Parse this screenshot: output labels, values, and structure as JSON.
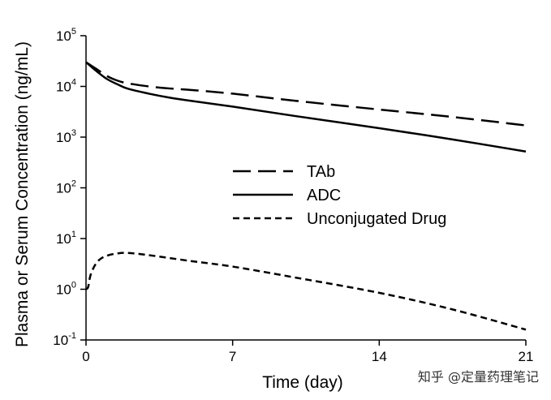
{
  "chart_data": {
    "type": "line",
    "title": "",
    "xlabel": "Time (day)",
    "ylabel": "Plasma or Serum Concentration (ng/mL)",
    "xlim": [
      0,
      21
    ],
    "ylim": [
      0.1,
      100000
    ],
    "yscale": "log",
    "grid": false,
    "legend_position": "center-right",
    "x_ticks": [
      {
        "value": 0,
        "label": "0"
      },
      {
        "value": 7,
        "label": "7"
      },
      {
        "value": 14,
        "label": "14"
      },
      {
        "value": 21,
        "label": "21"
      }
    ],
    "y_ticks": [
      {
        "value": 0.1,
        "base": "10",
        "exp": "-1"
      },
      {
        "value": 1,
        "base": "10",
        "exp": "0"
      },
      {
        "value": 10,
        "base": "10",
        "exp": "1"
      },
      {
        "value": 100,
        "base": "10",
        "exp": "2"
      },
      {
        "value": 1000,
        "base": "10",
        "exp": "3"
      },
      {
        "value": 10000,
        "base": "10",
        "exp": "4"
      },
      {
        "value": 100000,
        "base": "10",
        "exp": "5"
      }
    ],
    "series": [
      {
        "name": "TAb",
        "dash": "long-dash",
        "x": [
          0,
          0.5,
          1,
          1.5,
          2,
          3,
          4,
          5,
          7,
          10,
          14,
          17.5,
          21
        ],
        "y": [
          30000,
          22000,
          16000,
          13000,
          11500,
          10000,
          9100,
          8500,
          7200,
          5200,
          3500,
          2500,
          1700
        ]
      },
      {
        "name": "ADC",
        "dash": "solid",
        "x": [
          0,
          0.5,
          1,
          1.5,
          2,
          3,
          4,
          5,
          7,
          10,
          14,
          17.5,
          21
        ],
        "y": [
          30000,
          20000,
          14000,
          11000,
          9000,
          7200,
          6000,
          5200,
          4000,
          2600,
          1500,
          900,
          520
        ]
      },
      {
        "name": "Unconjugated Drug",
        "dash": "short-dash",
        "x": [
          0,
          0.1,
          0.2,
          0.35,
          0.5,
          0.7,
          1,
          1.5,
          2,
          3,
          5,
          7,
          10,
          14,
          17.5,
          21
        ],
        "y": [
          1.0,
          1.1,
          1.8,
          2.6,
          3.3,
          4.0,
          4.6,
          5.1,
          5.2,
          4.7,
          3.6,
          2.8,
          1.7,
          0.85,
          0.4,
          0.16
        ]
      }
    ]
  },
  "watermark": "知乎 @定量药理笔记"
}
